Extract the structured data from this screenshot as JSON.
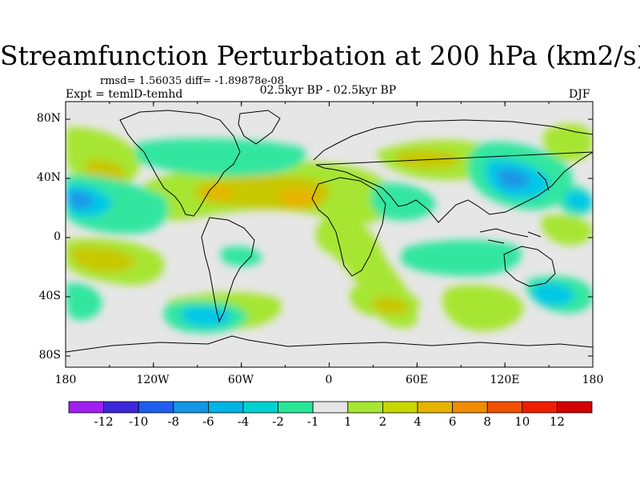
{
  "title": "Streamfunction Perturbation at 200 hPa (km2/s)",
  "stats": "rmsd= 1.56035 diff= -1.89878e-08",
  "experiment": "Expt = temlD-temhd",
  "period": "02.5kyr BP - 02.5kyr BP",
  "season": "DJF",
  "map": {
    "lat_ticks": [
      "80N",
      "40N",
      "0",
      "40S",
      "80S"
    ],
    "lon_ticks": [
      "180",
      "120W",
      "60W",
      "0",
      "60E",
      "120E",
      "180"
    ]
  },
  "colorbar": {
    "labels": [
      "-12",
      "-10",
      "-8",
      "-6",
      "-4",
      "-2",
      "-1",
      "1",
      "2",
      "4",
      "6",
      "8",
      "10",
      "12"
    ],
    "colors": [
      "#a020f0",
      "#3c28d8",
      "#1e5ff0",
      "#1496e6",
      "#00b4e6",
      "#00d2d2",
      "#28e696",
      "#e6e6e6",
      "#a6e632",
      "#c8d700",
      "#e6b400",
      "#f08c00",
      "#f05000",
      "#f01e00",
      "#d20000"
    ]
  },
  "palette": {
    "neg_strong": "#1e96e6",
    "neg_mid": "#00c8e6",
    "neg_weak": "#32e6a0",
    "neutral": "#e6e6e6",
    "pos_weak": "#a6e632",
    "pos_mid": "#c8c800",
    "pos_strong": "#e6b400",
    "pos_peak": "#f09614"
  }
}
